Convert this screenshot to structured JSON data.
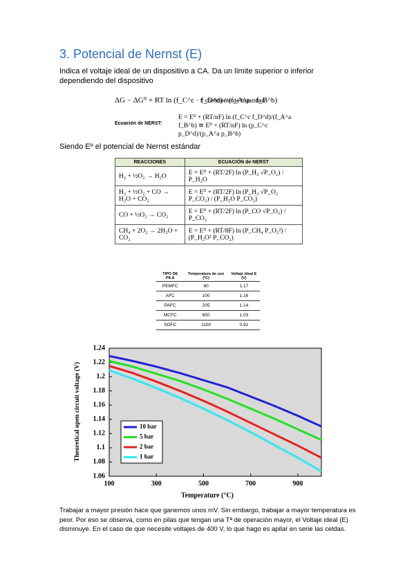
{
  "heading": "3. Potencial de Nernst (E)",
  "intro": "Indica el voltaje ideal de un dispositivo a CA. Da un límite superior o inferior dependiendo del dispositivo",
  "equations": {
    "gibbs": "ΔG − ΔG⁰ + RT ln (f_C^c · f_D^d) / (f_A^a · f_B^b)",
    "gibbs_note": "f: coeficiente de fugacidad",
    "nernst_label": "Ecuación de NERST:",
    "nernst": "E = E⁰ + (RT/nF) ln (f_C^c f_D^d)/(f_A^a f_B^b) ≅ E⁰ + (RT/nF) ln (p_C^c p_D^d)/(p_A^a p_B^b)"
  },
  "standard_note": "Siendo Eº el potencial de Nernst estándar",
  "reactions_table": {
    "header": [
      "REACCIONES",
      "ECUACIÓN de NERST"
    ],
    "rows": [
      [
        "H₂ + ½O₂ → H₂O",
        "E = E⁰ + (RT/2F) ln (P_H₂ √P_O₂) / P_H₂O"
      ],
      [
        "H₂ + ½O₂ + CO → H₂O + CO₂",
        "E = E⁰ + (RT/2F) ln (P_H₂ √P_O₂ P_CO₂) / (P_H₂O P_CO₂)"
      ],
      [
        "CO + ½O₂ → CO₂",
        "E = E⁰ + (RT/2F) ln (P_CO √P_O₂) / P_CO₂"
      ],
      [
        "CH₄ + 2O₂ → 2H₂O + CO₂",
        "E = E⁰ + (RT/8F) ln (P_CH₄ P_O₂²) / (P_H₂O² P_CO₂)"
      ]
    ]
  },
  "cells_table": {
    "header": [
      "TIPO DE PILA",
      "Temperatura de uso (ºC)",
      "Voltaje ideal E (V)"
    ],
    "rows": [
      [
        "PEMFC",
        "80",
        "1.17"
      ],
      [
        "AFC",
        "100",
        "1.16"
      ],
      [
        "PAFC",
        "205",
        "1.14"
      ],
      [
        "MCFC",
        "650",
        "1.03"
      ],
      [
        "SOFC",
        "1100",
        "0.91"
      ]
    ]
  },
  "chart_data": {
    "type": "line",
    "x_label": "Temperature (°C)",
    "y_label": "Theoretical open circuit voltage (V)",
    "x": [
      100,
      200,
      300,
      400,
      500,
      600,
      700,
      800,
      900,
      1000
    ],
    "xlim": [
      100,
      1000
    ],
    "xticks": [
      100,
      300,
      500,
      700,
      900
    ],
    "ylim": [
      1.06,
      1.24
    ],
    "yticks": [
      1.06,
      1.08,
      1.1,
      1.12,
      1.14,
      1.16,
      1.18,
      1.2,
      1.22,
      1.24
    ],
    "legend": "lower left",
    "background": "#d9d9d9",
    "series": [
      {
        "name": "10 bar",
        "color": "#1f1fd6",
        "values": [
          1.229,
          1.222,
          1.214,
          1.205,
          1.195,
          1.185,
          1.172,
          1.159,
          1.145,
          1.13
        ]
      },
      {
        "name": "5 bar",
        "color": "#22e022",
        "values": [
          1.222,
          1.214,
          1.204,
          1.194,
          1.182,
          1.169,
          1.155,
          1.141,
          1.126,
          1.111
        ]
      },
      {
        "name": "2 bar",
        "color": "#e52020",
        "values": [
          1.215,
          1.205,
          1.193,
          1.18,
          1.166,
          1.151,
          1.135,
          1.119,
          1.103,
          1.086
        ]
      },
      {
        "name": "1 bar",
        "color": "#33e6f0",
        "values": [
          1.209,
          1.197,
          1.184,
          1.17,
          1.155,
          1.139,
          1.122,
          1.104,
          1.086,
          1.067
        ]
      }
    ]
  },
  "closing": "Trabajar a mayor presión hace que ganemos unos mV. Sin embargo, trabajar a mayor temperatura es peor. Por eso se observa, como en pilas que tengan una Tª de operación mayor, el Voltaje ideal (E) disminuye. En el caso de que necesite voltajes de 400 V, lo que hago es apilar en serie las celdas."
}
